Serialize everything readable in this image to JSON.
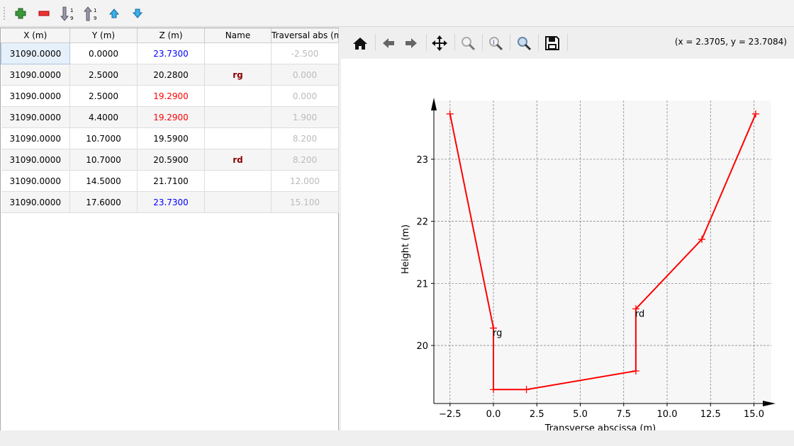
{
  "toolbar": {
    "buttons": [
      {
        "name": "add-row-icon"
      },
      {
        "name": "remove-row-icon"
      },
      {
        "name": "sort-ascending-icon"
      },
      {
        "name": "sort-descending-icon"
      },
      {
        "name": "move-up-icon"
      },
      {
        "name": "move-down-icon"
      }
    ]
  },
  "table": {
    "headers": [
      "X (m)",
      "Y (m)",
      "Z (m)",
      "Name",
      "Traversal abs (m"
    ],
    "rows": [
      [
        "31090.0000",
        "0.0000",
        "23.7300",
        "",
        "-2.500"
      ],
      [
        "31090.0000",
        "2.5000",
        "20.2800",
        "rg",
        "0.000"
      ],
      [
        "31090.0000",
        "2.5000",
        "19.2900",
        "",
        "0.000"
      ],
      [
        "31090.0000",
        "4.4000",
        "19.2900",
        "",
        "1.900"
      ],
      [
        "31090.0000",
        "10.7000",
        "19.5900",
        "",
        "8.200"
      ],
      [
        "31090.0000",
        "10.7000",
        "20.5900",
        "rd",
        "8.200"
      ],
      [
        "31090.0000",
        "14.5000",
        "21.7100",
        "",
        "12.000"
      ],
      [
        "31090.0000",
        "17.6000",
        "23.7300",
        "",
        "15.100"
      ]
    ],
    "z_colors": [
      "blue",
      "",
      "red",
      "red",
      "",
      "",
      "",
      "blue"
    ]
  },
  "plot_toolbar": {
    "coords": "(x = 2.3705,  y = 23.7084)"
  },
  "chart_data": {
    "type": "line",
    "xlabel": "Transverse abscissa (m)",
    "ylabel": "Height (m)",
    "xlim": [
      -3.43,
      16.0
    ],
    "ylim": [
      19.065,
      23.946
    ],
    "grid": true,
    "color": "#ff0000",
    "xticks": [
      -2.5,
      0,
      2.5,
      5,
      7.5,
      10,
      12.5,
      15
    ],
    "xtick_labels": [
      "−2.5",
      "0.0",
      "2.5",
      "5.0",
      "7.5",
      "10.0",
      "12.5",
      "15.0"
    ],
    "yticks": [
      20,
      21,
      22,
      23
    ],
    "ytick_labels": [
      "20",
      "21",
      "22",
      "23"
    ],
    "x": [
      -2.5,
      0,
      0,
      1.9,
      8.2,
      8.2,
      12,
      15.1
    ],
    "y": [
      23.73,
      20.28,
      19.29,
      19.29,
      19.59,
      20.59,
      21.71,
      23.73
    ],
    "annotations": [
      {
        "text": "rg",
        "x": 0,
        "y": 20.28
      },
      {
        "text": "rd",
        "x": 8.2,
        "y": 20.59
      }
    ]
  }
}
